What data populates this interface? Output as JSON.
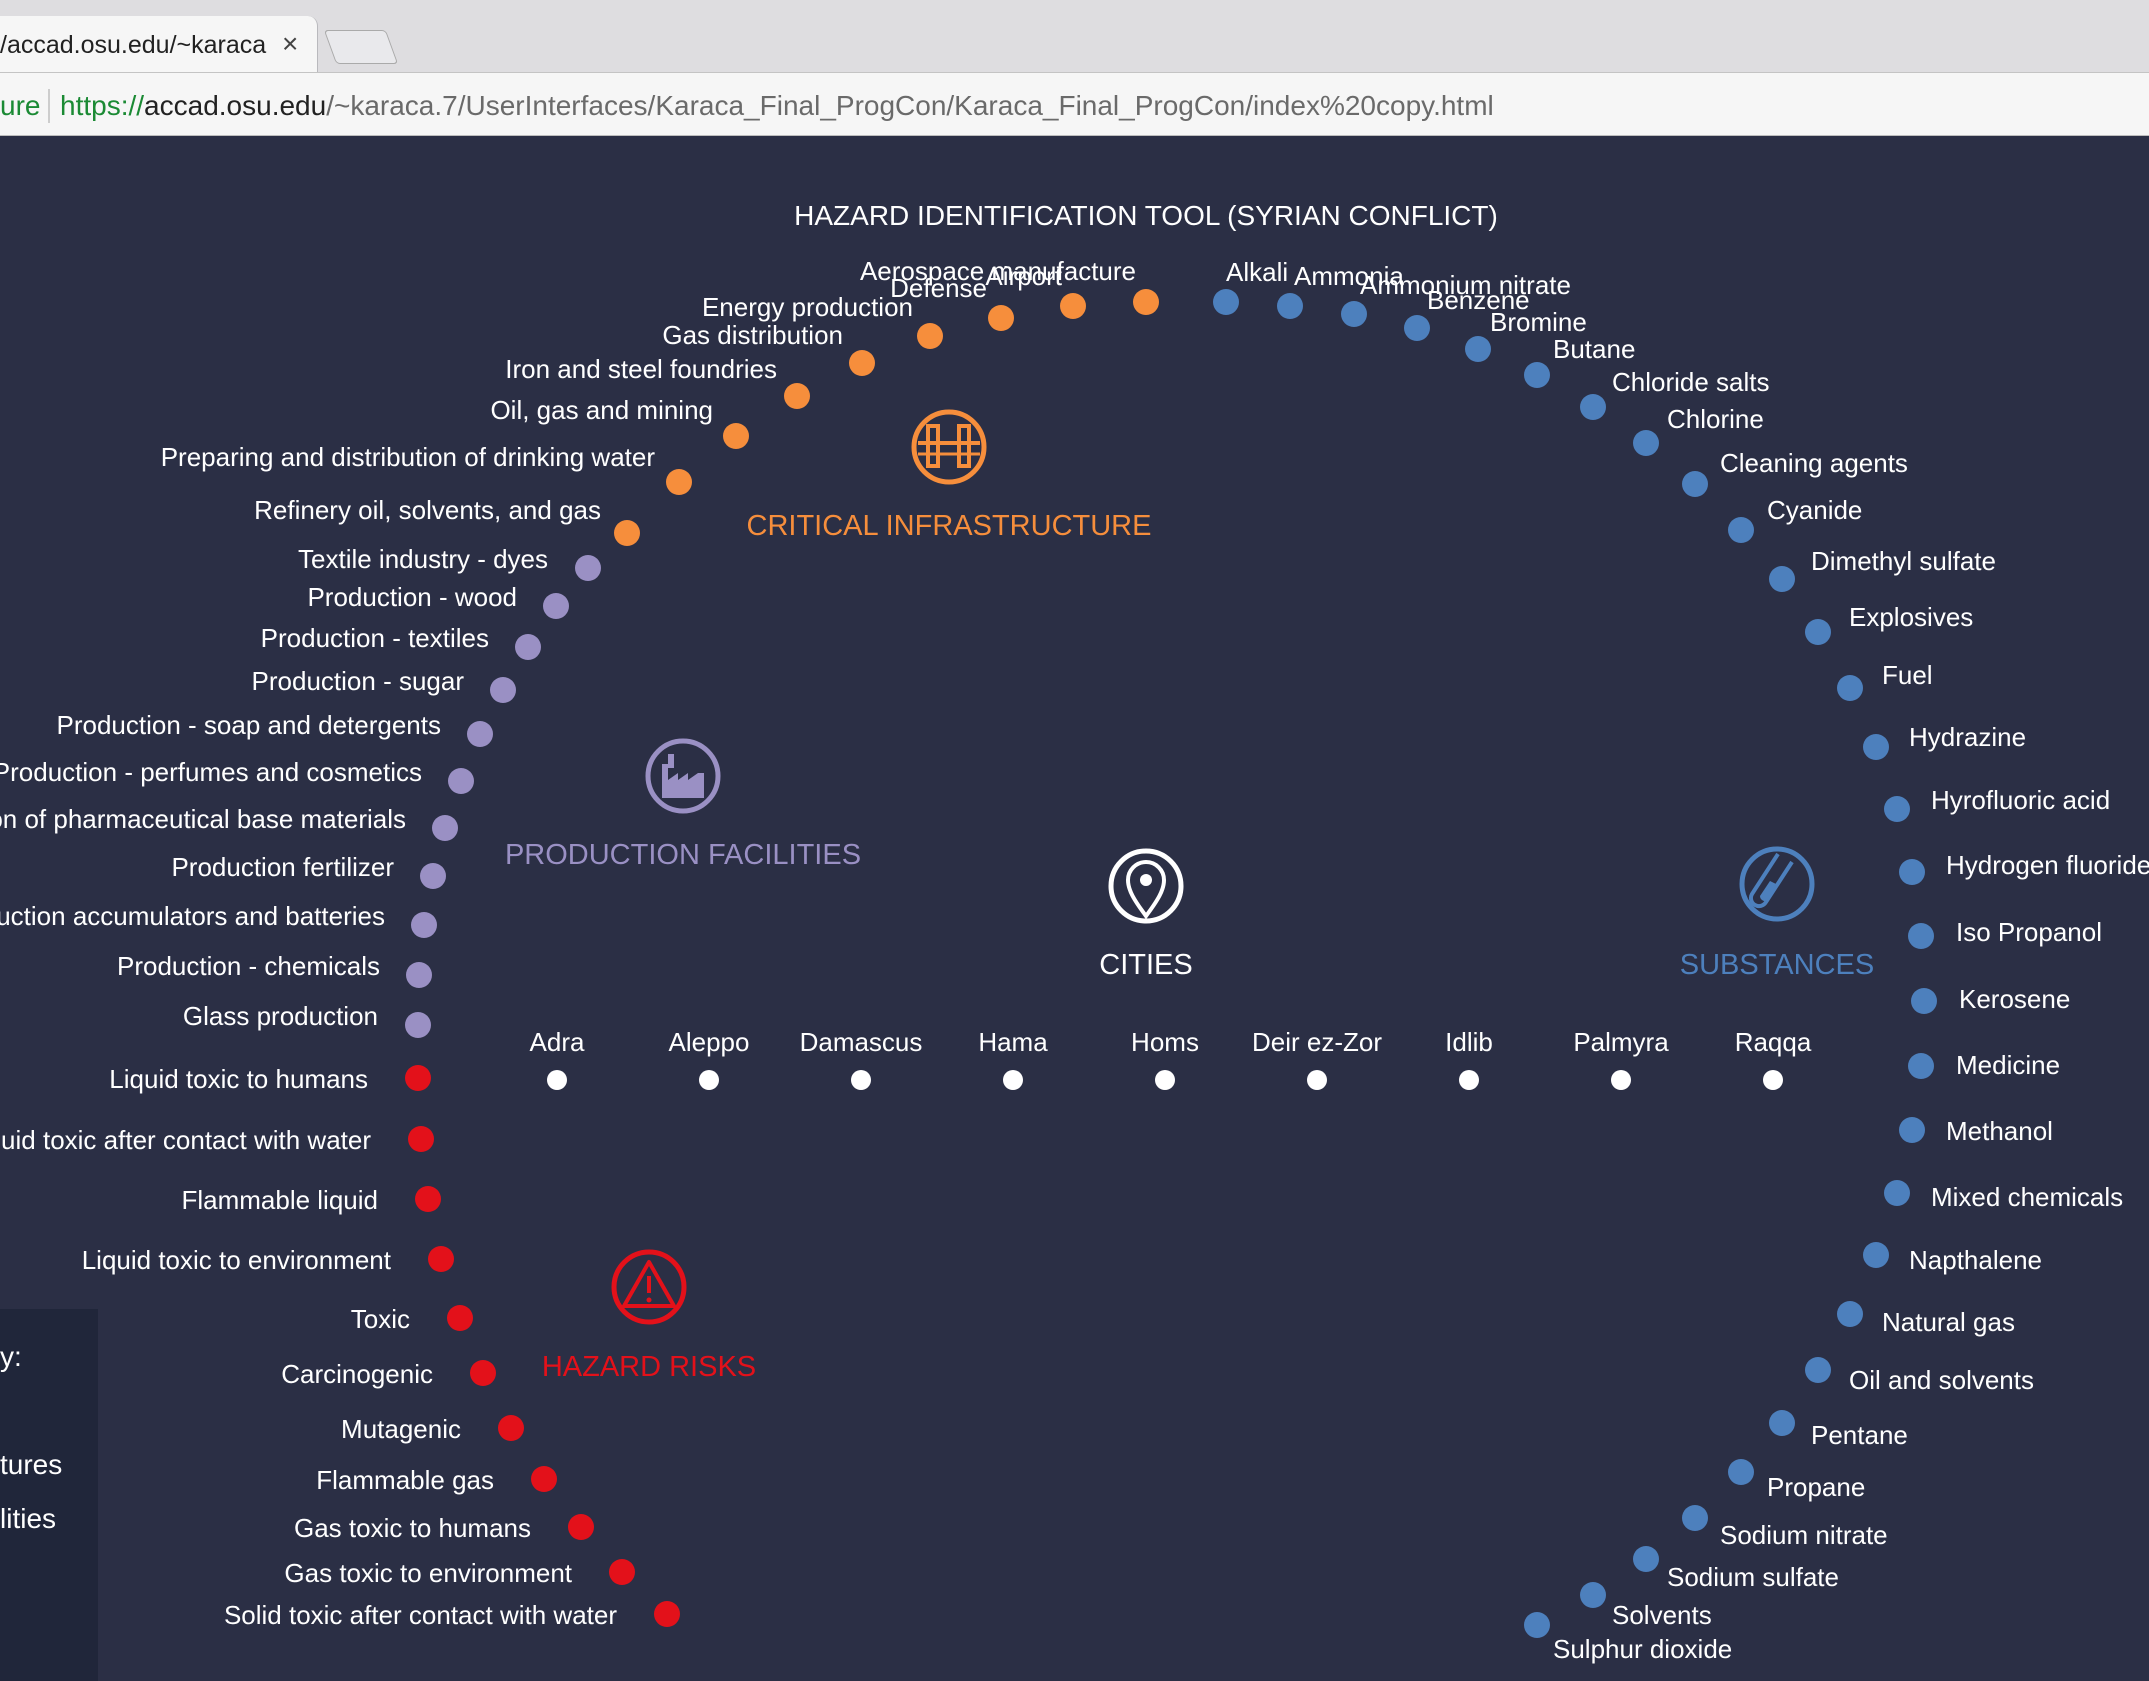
{
  "browser": {
    "tab_title_visible": "/accad.osu.edu/~karaca",
    "tab_title_fade": "ca",
    "close_icon": "×",
    "secure_label": "ure",
    "url_scheme": "https://",
    "url_host": "accad.osu.edu",
    "url_path": "/~karaca.7/UserInterfaces/Karaca_Final_ProgCon/Karaca_Final_ProgCon/index%20copy.html"
  },
  "page": {
    "title": "HAZARD IDENTIFICATION TOOL (SYRIAN CONFLICT)"
  },
  "colors": {
    "critical": "#f68e3c",
    "production": "#9a90c4",
    "hazard": "#e3111a",
    "substances": "#4d80bd",
    "city": "#ffffff",
    "background": "#2b2f45"
  },
  "categories": [
    {
      "key": "critical",
      "label": "CRITICAL INFRASTRUCTURE",
      "icon": "bridge-icon"
    },
    {
      "key": "production",
      "label": "PRODUCTION FACILITIES",
      "icon": "factory-icon"
    },
    {
      "key": "cities",
      "label": "CITIES",
      "icon": "map-pin-icon"
    },
    {
      "key": "substances",
      "label": "SUBSTANCES",
      "icon": "test-tube-icon"
    },
    {
      "key": "hazard",
      "label": "HAZARD RISKS",
      "icon": "warning-icon"
    }
  ],
  "cities": [
    "Adra",
    "Aleppo",
    "Damascus",
    "Hama",
    "Homs",
    "Deir ez-Zor",
    "Idlib",
    "Palmyra",
    "Raqqa"
  ],
  "critical_infrastructure": [
    "Aerospace manufacture",
    "Airport",
    "Defense",
    "Energy production",
    "Gas distribution",
    "Iron and steel foundries",
    "Oil, gas and mining",
    "Preparing and distribution of drinking water",
    "Refinery oil, solvents, and gas"
  ],
  "production_facilities": [
    "Textile industry - dyes",
    "Production - wood",
    "Production - textiles",
    "Production - sugar",
    "Production - soap and detergents",
    "Production - perfumes and cosmetics",
    "Production of pharmaceutical base materials",
    "Production fertilizer",
    "Production accumulators and batteries",
    "Production - chemicals",
    "Glass production"
  ],
  "hazard_risks": [
    "Liquid toxic to humans",
    "Liquid toxic after contact with water",
    "Flammable liquid",
    "Liquid toxic to environment",
    "Toxic",
    "Carcinogenic",
    "Mutagenic",
    "Flammable gas",
    "Gas toxic to humans",
    "Gas toxic to environment",
    "Solid toxic after contact with water"
  ],
  "substances": [
    "Alkali",
    "Ammonia",
    "Ammonium nitrate",
    "Benzene",
    "Bromine",
    "Butane",
    "Chloride salts",
    "Chlorine",
    "Cleaning agents",
    "Cyanide",
    "Dimethyl sulfate",
    "Explosives",
    "Fuel",
    "Hydrazine",
    "Hyrofluoric acid",
    "Hydrogen fluoride",
    "Iso Propanol",
    "Kerosene",
    "Medicine",
    "Methanol",
    "Mixed chemicals",
    "Napthalene",
    "Natural gas",
    "Oil and solvents",
    "Pentane",
    "Propane",
    "Sodium nitrate",
    "Sodium sulfate",
    "Solvents",
    "Sulphur dioxide"
  ],
  "legend": {
    "line1": "y:",
    "line2": "tures",
    "line3": "lities"
  }
}
